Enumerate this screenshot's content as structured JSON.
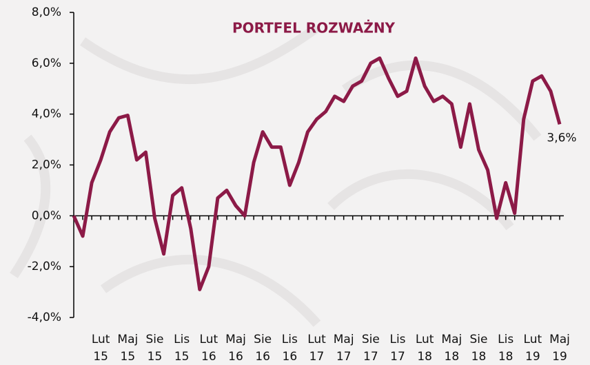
{
  "chart_data": {
    "type": "line",
    "title": "PORTFEL ROZWAŻNY",
    "categories": [
      null,
      null,
      null,
      "Lut 15",
      null,
      null,
      "Maj 15",
      null,
      null,
      "Sie 15",
      null,
      null,
      "Lis 15",
      null,
      null,
      "Lut 16",
      null,
      null,
      "Maj 16",
      null,
      null,
      "Sie 16",
      null,
      null,
      "Lis 16",
      null,
      null,
      "Lut 17",
      null,
      null,
      "Maj 17",
      null,
      null,
      "Sie 17",
      null,
      null,
      "Lis 17",
      null,
      null,
      "Lut 18",
      null,
      null,
      "Maj 18",
      null,
      null,
      "Sie 18",
      null,
      null,
      "Lis 18",
      null,
      null,
      "Lut 19",
      null,
      null,
      "Maj 19"
    ],
    "series": [
      {
        "color": "#8c1a47",
        "values": [
          0.0,
          -0.8,
          1.3,
          2.2,
          3.3,
          3.85,
          3.95,
          2.2,
          2.5,
          -0.1,
          -1.5,
          0.8,
          1.1,
          -0.5,
          -2.9,
          -2.0,
          0.7,
          1.0,
          0.4,
          0.0,
          2.1,
          3.3,
          2.7,
          2.7,
          1.2,
          2.1,
          3.3,
          3.8,
          4.1,
          4.7,
          4.5,
          5.1,
          5.3,
          6.0,
          6.2,
          5.4,
          4.7,
          4.9,
          6.2,
          5.1,
          4.5,
          4.7,
          4.4,
          2.7,
          4.4,
          2.6,
          1.8,
          -0.1,
          1.3,
          0.1,
          3.8,
          5.3,
          5.5,
          4.9,
          3.6
        ],
        "value_labels": [
          null,
          null,
          null,
          null,
          null,
          null,
          null,
          null,
          null,
          null,
          null,
          null,
          null,
          null,
          null,
          null,
          null,
          null,
          null,
          null,
          null,
          null,
          null,
          null,
          null,
          null,
          null,
          null,
          null,
          null,
          null,
          null,
          null,
          null,
          null,
          null,
          null,
          null,
          null,
          null,
          null,
          null,
          null,
          null,
          null,
          null,
          null,
          null,
          null,
          null,
          null,
          null,
          null,
          null,
          "3,6%"
        ]
      }
    ],
    "ylim": [
      -4,
      8
    ],
    "yticks": [
      {
        "value": -4,
        "label": "-4,0%"
      },
      {
        "value": -2,
        "label": "-2,0%"
      },
      {
        "value": 0,
        "label": "0,0%"
      },
      {
        "value": 2,
        "label": "2,0%"
      },
      {
        "value": 4,
        "label": "4,0%"
      },
      {
        "value": 6,
        "label": "6,0%"
      },
      {
        "value": 8,
        "label": "8,0%"
      }
    ]
  }
}
